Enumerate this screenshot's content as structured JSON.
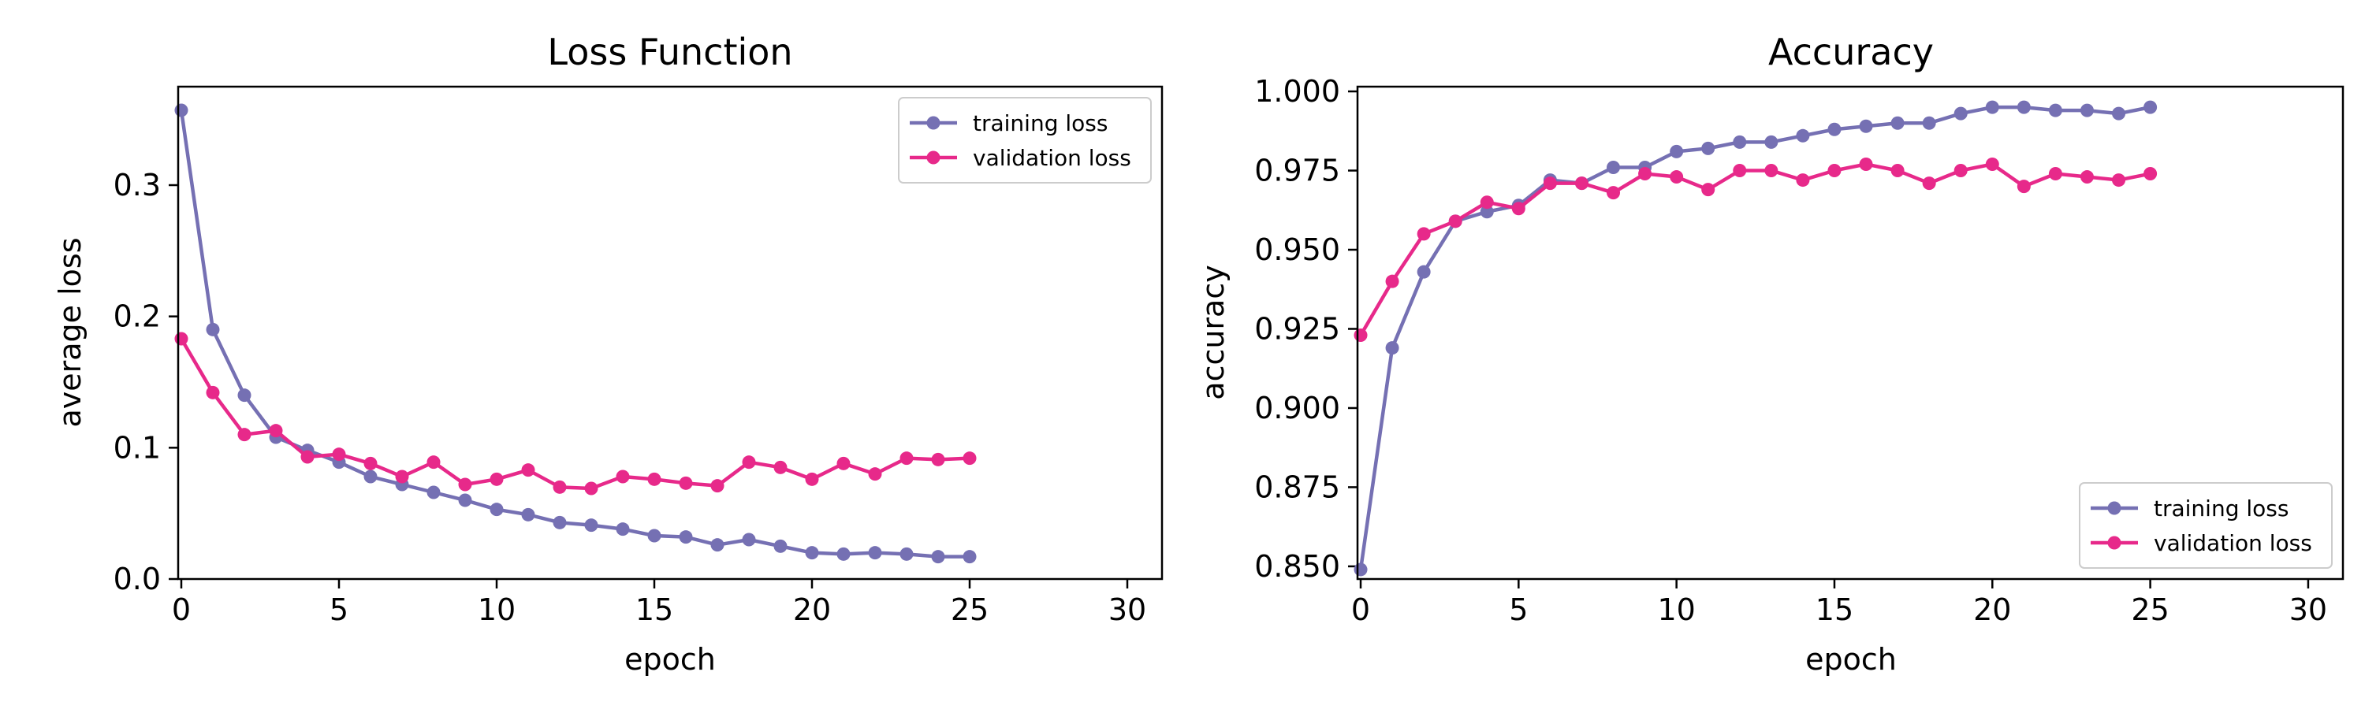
{
  "colors": {
    "training": "#7570b3",
    "validation": "#e7298a",
    "axes": "#000000",
    "legend_border": "#cccccc"
  },
  "chart_data": [
    {
      "type": "line",
      "title": "Loss Function",
      "xlabel": "epoch",
      "ylabel": "average loss",
      "xlim": [
        -0.1,
        31.1
      ],
      "ylim": [
        0,
        0.375
      ],
      "xticks": [
        0,
        5,
        10,
        15,
        20,
        25,
        30
      ],
      "yticks": [
        0.0,
        0.1,
        0.2,
        0.3
      ],
      "ytick_labels": [
        "0.0",
        "0.1",
        "0.2",
        "0.3"
      ],
      "xtick_labels": [
        "0",
        "5",
        "10",
        "15",
        "20",
        "25",
        "30"
      ],
      "grid": false,
      "legend_position": "top-right",
      "x": [
        0,
        1,
        2,
        3,
        4,
        5,
        6,
        7,
        8,
        9,
        10,
        11,
        12,
        13,
        14,
        15,
        16,
        17,
        18,
        19,
        20,
        21,
        22,
        23,
        24,
        25
      ],
      "series": [
        {
          "name": "training loss",
          "color": "#7570b3",
          "values": [
            0.357,
            0.19,
            0.14,
            0.108,
            0.098,
            0.089,
            0.078,
            0.072,
            0.066,
            0.06,
            0.053,
            0.049,
            0.043,
            0.041,
            0.038,
            0.033,
            0.032,
            0.026,
            0.03,
            0.025,
            0.02,
            0.019,
            0.02,
            0.019,
            0.017,
            0.017
          ]
        },
        {
          "name": "validation loss",
          "color": "#e7298a",
          "values": [
            0.183,
            0.142,
            0.11,
            0.113,
            0.093,
            0.095,
            0.088,
            0.078,
            0.089,
            0.072,
            0.076,
            0.083,
            0.07,
            0.069,
            0.078,
            0.076,
            0.073,
            0.071,
            0.089,
            0.085,
            0.076,
            0.088,
            0.08,
            0.092,
            0.091,
            0.092
          ]
        }
      ]
    },
    {
      "type": "line",
      "title": "Accuracy",
      "xlabel": "epoch",
      "ylabel": "accuracy",
      "xlim": [
        -0.1,
        31.1
      ],
      "ylim": [
        0.846,
        1.0015
      ],
      "xticks": [
        0,
        5,
        10,
        15,
        20,
        25,
        30
      ],
      "yticks": [
        0.85,
        0.875,
        0.9,
        0.925,
        0.95,
        0.975,
        1.0
      ],
      "ytick_labels": [
        "0.850",
        "0.875",
        "0.900",
        "0.925",
        "0.950",
        "0.975",
        "1.000"
      ],
      "xtick_labels": [
        "0",
        "5",
        "10",
        "15",
        "20",
        "25",
        "30"
      ],
      "grid": false,
      "legend_position": "bottom-right",
      "x": [
        0,
        1,
        2,
        3,
        4,
        5,
        6,
        7,
        8,
        9,
        10,
        11,
        12,
        13,
        14,
        15,
        16,
        17,
        18,
        19,
        20,
        21,
        22,
        23,
        24,
        25
      ],
      "series": [
        {
          "name": "training loss",
          "color": "#7570b3",
          "values": [
            0.849,
            0.919,
            0.943,
            0.959,
            0.962,
            0.964,
            0.972,
            0.971,
            0.976,
            0.976,
            0.981,
            0.982,
            0.984,
            0.984,
            0.986,
            0.988,
            0.989,
            0.99,
            0.99,
            0.993,
            0.995,
            0.995,
            0.994,
            0.994,
            0.993,
            0.995
          ]
        },
        {
          "name": "validation loss",
          "color": "#e7298a",
          "values": [
            0.923,
            0.94,
            0.955,
            0.959,
            0.965,
            0.963,
            0.971,
            0.971,
            0.968,
            0.974,
            0.973,
            0.969,
            0.975,
            0.975,
            0.972,
            0.975,
            0.977,
            0.975,
            0.971,
            0.975,
            0.977,
            0.97,
            0.974,
            0.973,
            0.972,
            0.974
          ]
        }
      ]
    }
  ]
}
